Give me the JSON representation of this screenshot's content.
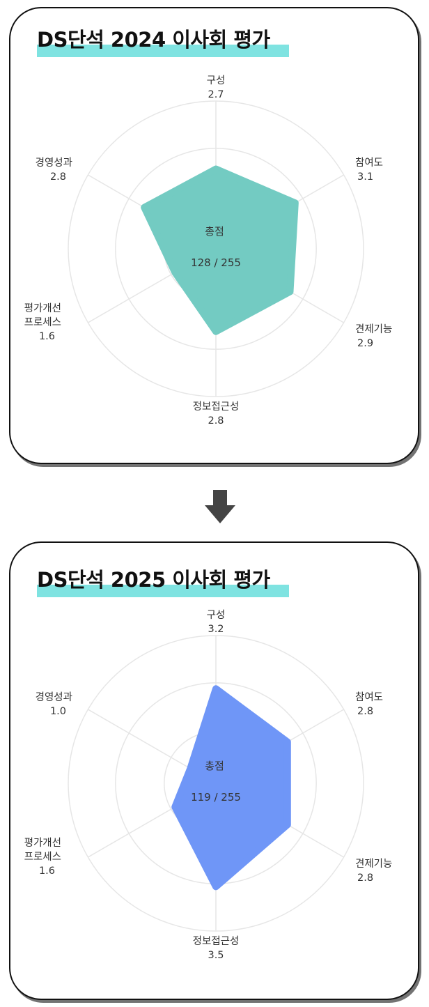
{
  "colors": {
    "accent_highlight": "#7fe3e1",
    "series_2024": "#73cbc2",
    "series_2025": "#6f96f7",
    "grid": "#e6e6e6"
  },
  "arrow_icon": "down-arrow-icon",
  "chart_data": [
    {
      "type": "radar",
      "title": "DS단석 2024 이사회 평가",
      "center_label": "총점",
      "center_value": "128 / 255",
      "categories": [
        "구성",
        "참여도",
        "견제기능",
        "정보접근성",
        "평가개선\n프로세스",
        "경영성과"
      ],
      "values": [
        2.7,
        3.1,
        2.9,
        2.8,
        1.6,
        2.8
      ],
      "value_labels": [
        "2.7",
        "3.1",
        "2.9",
        "2.8",
        "1.6",
        "2.8"
      ],
      "rmax": 5,
      "grid": true,
      "color": "#73cbc2"
    },
    {
      "type": "radar",
      "title": "DS단석 2025 이사회 평가",
      "center_label": "총점",
      "center_value": "119 / 255",
      "categories": [
        "구성",
        "참여도",
        "견제기능",
        "정보접근성",
        "평가개선\n프로세스",
        "경영성과"
      ],
      "values": [
        3.2,
        2.8,
        2.8,
        3.5,
        1.6,
        1.0
      ],
      "value_labels": [
        "3.2",
        "2.8",
        "2.8",
        "3.5",
        "1.6",
        "1.0"
      ],
      "rmax": 5,
      "grid": true,
      "color": "#6f96f7"
    }
  ]
}
